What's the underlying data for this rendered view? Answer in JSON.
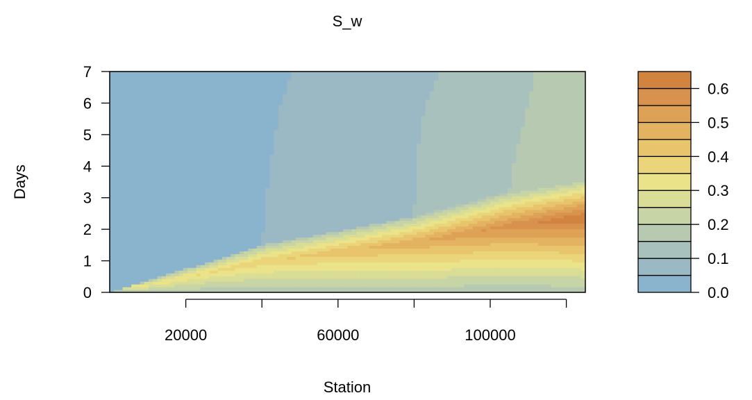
{
  "chart_data": {
    "type": "heatmap",
    "title": "S_w",
    "xlabel": "Station",
    "ylabel": "Days",
    "xlim": [
      0,
      125000
    ],
    "ylim": [
      0,
      7
    ],
    "x_ticks": [
      0,
      20000,
      40000,
      60000,
      80000,
      100000,
      120000
    ],
    "x_tick_labels": [
      "20000",
      "60000",
      "100000"
    ],
    "x_tick_label_values": [
      20000,
      60000,
      100000
    ],
    "y_ticks": [
      0,
      1,
      2,
      3,
      4,
      5,
      6,
      7
    ],
    "y_tick_labels": [
      "0",
      "1",
      "2",
      "3",
      "4",
      "5",
      "6",
      "7"
    ],
    "legend": {
      "placement": "right",
      "levels": [
        0.0,
        0.05,
        0.1,
        0.15,
        0.2,
        0.25,
        0.3,
        0.35,
        0.4,
        0.45,
        0.5,
        0.55,
        0.6,
        0.65
      ],
      "colors": [
        "#8ab4cd",
        "#9bb9c4",
        "#a8c1bd",
        "#b7c9b1",
        "#c7d4a6",
        "#d9dd96",
        "#eae38a",
        "#ebd57a",
        "#e8c56d",
        "#e3b362",
        "#dea257",
        "#d8924d",
        "#d18440"
      ],
      "tick_values": [
        0.0,
        0.1,
        0.2,
        0.3,
        0.4,
        0.5,
        0.6
      ],
      "tick_labels": [
        "0.0",
        "0.1",
        "0.2",
        "0.3",
        "0.4",
        "0.5",
        "0.6"
      ]
    },
    "front_boundaries": [
      {
        "x": [
          40000,
          42000,
          45000,
          48000
        ],
        "y": [
          1.5,
          4.0,
          6.0,
          7.0
        ]
      },
      {
        "x": [
          80000,
          80500,
          83000,
          87000
        ],
        "y": [
          2.4,
          4.2,
          6.0,
          7.0
        ]
      },
      {
        "x": [
          105000,
          106500,
          110000,
          112000
        ],
        "y": [
          3.2,
          4.3,
          6.0,
          7.0
        ]
      }
    ],
    "wedge_edge": {
      "x": [
        0,
        40000,
        80000,
        105000,
        125000
      ],
      "y": [
        0.0,
        1.5,
        2.4,
        3.2,
        3.6
      ]
    },
    "peak": {
      "x": 125000,
      "y": 2.4,
      "value": 0.65
    }
  }
}
